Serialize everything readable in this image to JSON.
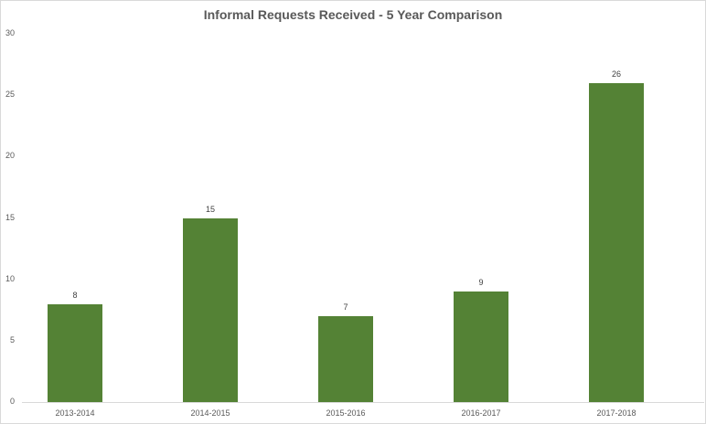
{
  "chart_data": {
    "type": "bar",
    "title": "Informal Requests Received - 5 Year Comparison",
    "categories": [
      "2013-2014",
      "2014-2015",
      "2015-2016",
      "2016-2017",
      "2017-2018"
    ],
    "values": [
      8,
      15,
      7,
      9,
      26
    ],
    "data_labels": [
      "8",
      "15",
      "7",
      "9",
      "26"
    ],
    "xlabel": "",
    "ylabel": "",
    "ylim": [
      0,
      30
    ],
    "yticks": [
      0,
      5,
      10,
      15,
      20,
      25,
      30
    ],
    "ytick_labels": [
      "0",
      "5",
      "10",
      "15",
      "20",
      "25",
      "30"
    ],
    "grid": false,
    "legend": "none",
    "bar_color": "#548235"
  }
}
